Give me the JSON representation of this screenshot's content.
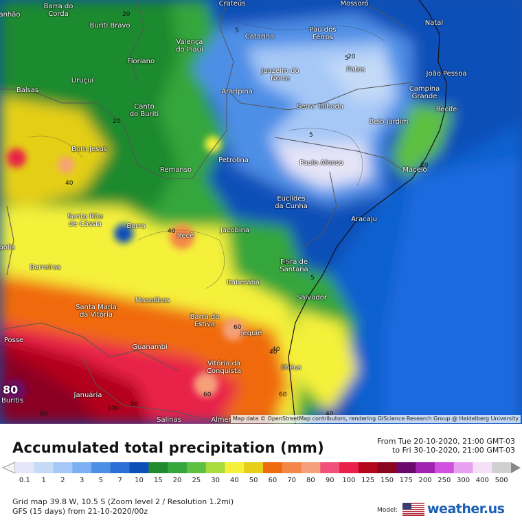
{
  "map": {
    "cities": [
      {
        "name": "Barra do Corda",
        "lines": [
          "Barra do",
          "Corda"
        ]
      },
      {
        "name": "Buriti Bravo",
        "lines": [
          "Buriti Bravo"
        ]
      },
      {
        "name": "Valença do Piauí",
        "lines": [
          "Valença",
          "do Piauí"
        ]
      },
      {
        "name": "Floriano",
        "lines": [
          "Floriano"
        ]
      },
      {
        "name": "Uruçuí",
        "lines": [
          "Uruçuí"
        ]
      },
      {
        "name": "Balsas",
        "lines": [
          "Balsas"
        ]
      },
      {
        "name": "Canto do Buriti",
        "lines": [
          "Canto",
          "do Buriti"
        ]
      },
      {
        "name": "Bom Jesus",
        "lines": [
          "Bom Jesus"
        ]
      },
      {
        "name": "Remanso",
        "lines": [
          "Remanso"
        ]
      },
      {
        "name": "Petrolina",
        "lines": [
          "Petrolina"
        ]
      },
      {
        "name": "Araripina",
        "lines": [
          "Araripina"
        ]
      },
      {
        "name": "Catarina",
        "lines": [
          "Catarina"
        ]
      },
      {
        "name": "Pau dos Ferros",
        "lines": [
          "Pau dos",
          "Ferros"
        ]
      },
      {
        "name": "Natal",
        "lines": [
          "Natal"
        ]
      },
      {
        "name": "Juazeiro do Norte",
        "lines": [
          "Juazeiro do",
          "Norte"
        ]
      },
      {
        "name": "Patos",
        "lines": [
          "Patos"
        ]
      },
      {
        "name": "João Pessoa",
        "lines": [
          "João Pessoa"
        ]
      },
      {
        "name": "Campina Grande",
        "lines": [
          "Campina",
          "Grande"
        ]
      },
      {
        "name": "Serra Talhada",
        "lines": [
          "Serra Talhada"
        ]
      },
      {
        "name": "Recife",
        "lines": [
          "Recife"
        ]
      },
      {
        "name": "Belo Jardim",
        "lines": [
          "Belo Jardim"
        ]
      },
      {
        "name": "Paulo Afonso",
        "lines": [
          "Paulo Afonso"
        ]
      },
      {
        "name": "Maceió",
        "lines": [
          "Maceió"
        ]
      },
      {
        "name": "Euclides da Cunha",
        "lines": [
          "Euclides",
          "da Cunha"
        ]
      },
      {
        "name": "Aracaju",
        "lines": [
          "Aracaju"
        ]
      },
      {
        "name": "Santa Rita de Cássia",
        "lines": [
          "Santa Rita",
          "de Cássia"
        ]
      },
      {
        "name": "Barra",
        "lines": [
          "Barra"
        ]
      },
      {
        "name": "Irecê",
        "lines": [
          "Irecê"
        ]
      },
      {
        "name": "Jacobina",
        "lines": [
          "Jacobina"
        ]
      },
      {
        "name": "Barreiras",
        "lines": [
          "Barreiras"
        ]
      },
      {
        "name": "Feira de Santana",
        "lines": [
          "Feira de",
          "Santana"
        ]
      },
      {
        "name": "Itaberaba",
        "lines": [
          "Itaberaba"
        ]
      },
      {
        "name": "Salvador",
        "lines": [
          "Salvador"
        ]
      },
      {
        "name": "Santa Maria da Vitória",
        "lines": [
          "Santa Maria",
          "da Vitória"
        ]
      },
      {
        "name": "Macaúbas",
        "lines": [
          "Macaúbas"
        ]
      },
      {
        "name": "Barra da Estiva",
        "lines": [
          "Barra da",
          "Estiva"
        ]
      },
      {
        "name": "Jequié",
        "lines": [
          "Jequié"
        ]
      },
      {
        "name": "Posse",
        "lines": [
          "Posse"
        ]
      },
      {
        "name": "Guanambi",
        "lines": [
          "Guanambi"
        ]
      },
      {
        "name": "Vitória da Conquista",
        "lines": [
          "Vitória da",
          "Conquista"
        ]
      },
      {
        "name": "Ilhéus",
        "lines": [
          "Ilhéus"
        ]
      },
      {
        "name": "Januária",
        "lines": [
          "Januária"
        ]
      },
      {
        "name": "Buritis",
        "lines": [
          "Buritis"
        ]
      },
      {
        "name": "Salinas",
        "lines": [
          "Salinas"
        ]
      },
      {
        "name": "Crateús",
        "lines": [
          "Crateús"
        ]
      },
      {
        "name": "Mossoró",
        "lines": [
          "Mossoró"
        ]
      },
      {
        "name": "Almenara",
        "lines": [
          "Almer"
        ]
      },
      {
        "name": "Manhão",
        "lines": [
          "anhão"
        ]
      },
      {
        "name": "Polis",
        "lines": [
          "polis"
        ]
      }
    ],
    "contour_labels": [
      "20",
      "40",
      "5",
      "5",
      "5",
      "20",
      "40",
      "40",
      "5",
      "40",
      "20",
      "20",
      "60",
      "40",
      "60",
      "80",
      "100",
      "60",
      "40",
      "80"
    ],
    "highlight_value": "80",
    "attribution": "Map data © OpenStreetMap contributors, rendering GIScience Research Group @ Heidelberg University"
  },
  "header": {
    "title": "Accumulated total precipitation (mm)",
    "period_from": "From Tue 20-10-2020, 21:00 GMT-03",
    "period_to": "to Fri 30-10-2020, 21:00 GMT-03"
  },
  "legend": {
    "items": [
      {
        "label": "0.1",
        "color": "#e6e4f7"
      },
      {
        "label": "1",
        "color": "#c5daf7"
      },
      {
        "label": "2",
        "color": "#a6c8f7"
      },
      {
        "label": "3",
        "color": "#7db0f2"
      },
      {
        "label": "5",
        "color": "#4d8ee6"
      },
      {
        "label": "7",
        "color": "#2a6ed6"
      },
      {
        "label": "10",
        "color": "#0d4fb8"
      },
      {
        "label": "15",
        "color": "#1f8a2e"
      },
      {
        "label": "20",
        "color": "#34a63b"
      },
      {
        "label": "25",
        "color": "#5dc040"
      },
      {
        "label": "30",
        "color": "#a8dc3a"
      },
      {
        "label": "40",
        "color": "#f5f13a"
      },
      {
        "label": "50",
        "color": "#e5cf17"
      },
      {
        "label": "60",
        "color": "#f06a10"
      },
      {
        "label": "70",
        "color": "#f5864a"
      },
      {
        "label": "80",
        "color": "#f5a07a"
      },
      {
        "label": "90",
        "color": "#f0507a"
      },
      {
        "label": "100",
        "color": "#e8204a"
      },
      {
        "label": "125",
        "color": "#b3061a"
      },
      {
        "label": "150",
        "color": "#8a0620"
      },
      {
        "label": "175",
        "color": "#6a0a6a"
      },
      {
        "label": "200",
        "color": "#a020b0"
      },
      {
        "label": "250",
        "color": "#d050e0"
      },
      {
        "label": "300",
        "color": "#e8a0f0"
      },
      {
        "label": "400",
        "color": "#f5e0f7"
      },
      {
        "label": "500",
        "color": "#d0d0d0"
      }
    ]
  },
  "footer": {
    "grid_info": "Grid map 39.8 W, 10.5 S (Zoom level 2 / Resolution 1.2mi)",
    "model_info": "GFS (15 days) from  21-10-2020/00z",
    "model_label": "Model:",
    "brand": "weather.us"
  }
}
